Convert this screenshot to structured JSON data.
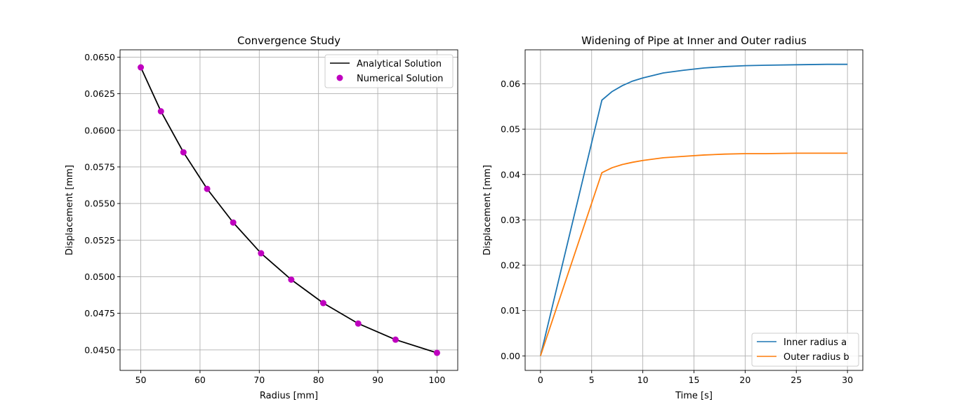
{
  "chart_data": [
    {
      "type": "line",
      "title": "Convergence Study",
      "xlabel": "Radius [mm]",
      "ylabel": "Displacement [mm]",
      "xlim": [
        46.5,
        103.5
      ],
      "ylim": [
        0.0436,
        0.0655
      ],
      "xticks": [
        50,
        60,
        70,
        80,
        90,
        100
      ],
      "yticks": [
        0.045,
        0.0475,
        0.05,
        0.0525,
        0.055,
        0.0575,
        0.06,
        0.0625,
        0.065
      ],
      "xtick_labels": [
        "50",
        "60",
        "70",
        "80",
        "90",
        "100"
      ],
      "ytick_labels": [
        "0.0450",
        "0.0475",
        "0.0500",
        "0.0525",
        "0.0550",
        "0.0575",
        "0.0600",
        "0.0625",
        "0.0650"
      ],
      "grid": true,
      "legend_position": "upper-right",
      "series": [
        {
          "name": "Analytical Solution",
          "kind": "line",
          "color": "#000000",
          "x": [
            50.0,
            53.4,
            57.2,
            61.2,
            65.6,
            70.3,
            75.4,
            80.8,
            86.7,
            93.0,
            100.0
          ],
          "y": [
            0.0643,
            0.0613,
            0.0585,
            0.056,
            0.0537,
            0.0516,
            0.0498,
            0.0482,
            0.0468,
            0.0457,
            0.0448
          ]
        },
        {
          "name": "Numerical Solution",
          "kind": "scatter",
          "color": "#bf00bf",
          "x": [
            50.0,
            53.4,
            57.2,
            61.2,
            65.6,
            70.3,
            75.4,
            80.8,
            86.7,
            93.0,
            100.0
          ],
          "y": [
            0.0643,
            0.0613,
            0.0585,
            0.056,
            0.0537,
            0.0516,
            0.0498,
            0.0482,
            0.0468,
            0.0457,
            0.0448
          ]
        }
      ]
    },
    {
      "type": "line",
      "title": "Widening of Pipe at Inner and Outer radius",
      "xlabel": "Time [s]",
      "ylabel": "Displacement [mm]",
      "xlim": [
        -1.5,
        31.5
      ],
      "ylim": [
        -0.0032,
        0.0675
      ],
      "xticks": [
        0,
        5,
        10,
        15,
        20,
        25,
        30
      ],
      "yticks": [
        0.0,
        0.01,
        0.02,
        0.03,
        0.04,
        0.05,
        0.06
      ],
      "xtick_labels": [
        "0",
        "5",
        "10",
        "15",
        "20",
        "25",
        "30"
      ],
      "ytick_labels": [
        "0.00",
        "0.01",
        "0.02",
        "0.03",
        "0.04",
        "0.05",
        "0.06"
      ],
      "grid": true,
      "legend_position": "lower-right",
      "series": [
        {
          "name": "Inner radius a",
          "kind": "line",
          "color": "#1f77b4",
          "x": [
            0,
            6,
            7,
            8,
            9,
            10,
            12,
            14,
            16,
            18,
            20,
            22,
            25,
            28,
            30
          ],
          "y": [
            0.0,
            0.0564,
            0.0583,
            0.0596,
            0.0606,
            0.0613,
            0.0624,
            0.063,
            0.0635,
            0.0638,
            0.064,
            0.0641,
            0.0642,
            0.0643,
            0.0643
          ]
        },
        {
          "name": "Outer radius b",
          "kind": "line",
          "color": "#ff7f0e",
          "x": [
            0,
            6,
            7,
            8,
            9,
            10,
            12,
            14,
            16,
            18,
            20,
            22,
            25,
            28,
            30
          ],
          "y": [
            0.0,
            0.0404,
            0.0415,
            0.0422,
            0.0427,
            0.0431,
            0.0437,
            0.044,
            0.0443,
            0.0445,
            0.0446,
            0.0446,
            0.0447,
            0.0447,
            0.0447
          ]
        }
      ]
    }
  ]
}
